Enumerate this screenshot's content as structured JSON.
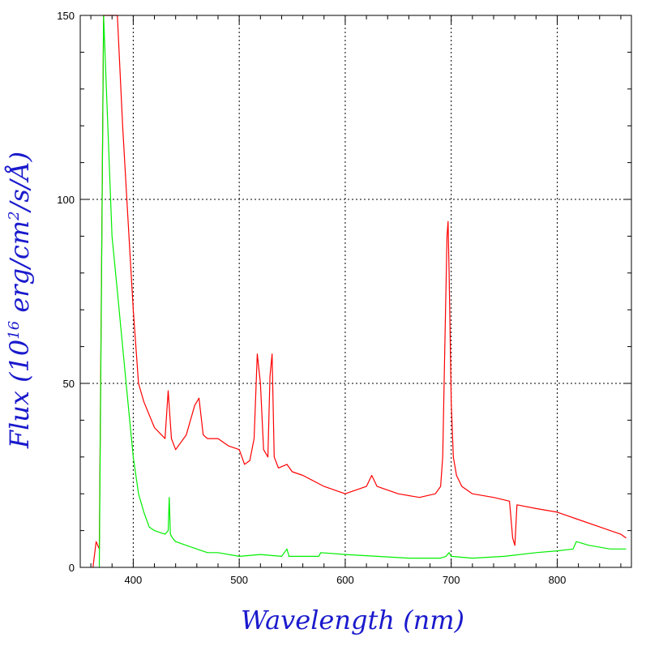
{
  "chart_data": {
    "type": "line",
    "title": "",
    "xlabel": "Wavelength (nm)",
    "ylabel": {
      "prefix": "Flux (10",
      "exp1": "16",
      "mid": " erg/cm",
      "exp2": "2",
      "suffix": "/s/Å)"
    },
    "xlim": [
      350,
      870
    ],
    "ylim": [
      0,
      150
    ],
    "x_ticks": [
      400,
      500,
      600,
      700,
      800
    ],
    "x_tick_labels": [
      "400",
      "500",
      "600",
      "700",
      "800"
    ],
    "y_ticks": [
      0,
      50,
      100,
      150
    ],
    "y_tick_labels": [
      "0",
      "50",
      "100",
      "150"
    ],
    "grid": true,
    "legend": "none",
    "colors": {
      "axis_title": "#1a1acd",
      "red_series": "#ff0000",
      "green_series": "#00ee00"
    },
    "series": [
      {
        "color": "#ff0000",
        "x": [
          362,
          365,
          368,
          372,
          375,
          380,
          385,
          390,
          395,
          400,
          405,
          410,
          420,
          430,
          433,
          436,
          440,
          450,
          458,
          462,
          466,
          470,
          480,
          490,
          500,
          505,
          510,
          514,
          517,
          520,
          523,
          527,
          529,
          531,
          533,
          537,
          545,
          550,
          560,
          580,
          600,
          620,
          625,
          630,
          650,
          670,
          685,
          690,
          692,
          694,
          696,
          697,
          698,
          700,
          702,
          705,
          710,
          720,
          740,
          755,
          758,
          760,
          762,
          780,
          800,
          820,
          840,
          860,
          865
        ],
        "y": [
          0,
          7,
          5,
          160,
          150,
          150,
          150,
          120,
          95,
          70,
          50,
          45,
          38,
          35,
          48,
          35,
          32,
          36,
          44,
          46,
          36,
          35,
          35,
          33,
          32,
          28,
          29,
          35,
          58,
          50,
          32,
          30,
          52,
          58,
          30,
          27,
          28,
          26,
          25,
          22,
          20,
          22,
          25,
          22,
          20,
          19,
          20,
          22,
          30,
          60,
          90,
          94,
          80,
          45,
          30,
          25,
          22,
          20,
          19,
          18,
          8,
          6,
          17,
          16,
          15,
          13,
          11,
          9,
          8
        ]
      },
      {
        "color": "#00ee00",
        "x": [
          368,
          372,
          376,
          380,
          385,
          390,
          395,
          400,
          405,
          410,
          415,
          420,
          430,
          433,
          434,
          435,
          437,
          440,
          450,
          460,
          470,
          480,
          500,
          520,
          540,
          545,
          547,
          560,
          575,
          577,
          600,
          630,
          660,
          690,
          695,
          698,
          700,
          720,
          750,
          780,
          800,
          815,
          818,
          830,
          850,
          865
        ],
        "y": [
          0,
          150,
          120,
          90,
          75,
          60,
          45,
          30,
          20,
          15,
          11,
          10,
          9,
          10,
          19,
          9,
          8,
          7,
          6,
          5,
          4,
          4,
          3,
          3.5,
          3,
          5,
          3,
          3,
          3,
          4,
          3.5,
          3,
          2.5,
          2.5,
          3,
          4,
          3,
          2.5,
          3,
          4,
          4.5,
          5,
          7,
          6,
          5,
          5
        ]
      }
    ]
  }
}
